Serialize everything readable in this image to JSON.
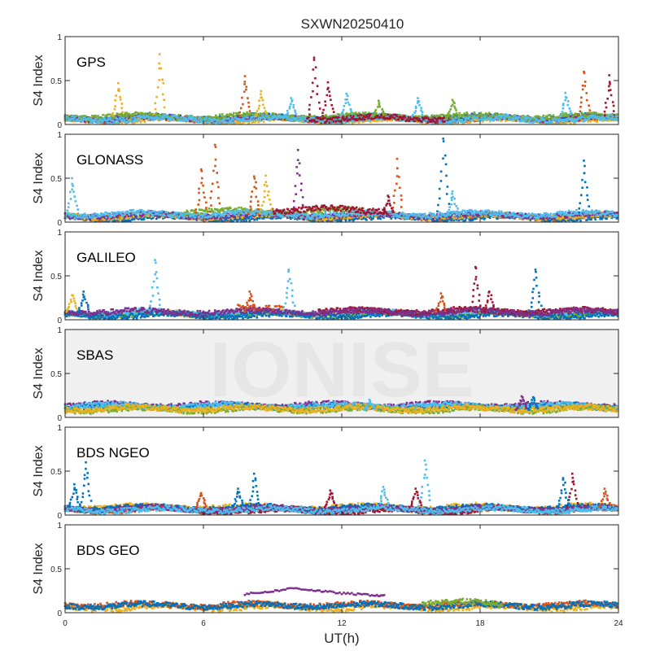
{
  "figure": {
    "title": "SXWN20250410",
    "watermark": "IONISE",
    "xlabel": "UT(h)",
    "ylabel": "S4 Index"
  },
  "colors": {
    "blue": "#0072bd",
    "orange": "#d95319",
    "yellow": "#edb120",
    "purple": "#7e2f8e",
    "green": "#77ac30",
    "cyan": "#4dbeee",
    "darkred": "#a2142f",
    "watermark": "#e6e6e6",
    "panel_bg": "#ffffff",
    "panel_bg_alt": "#f0f0f0"
  },
  "chart_data": [
    {
      "type": "scatter",
      "label": "GPS",
      "xlim": [
        0,
        24
      ],
      "ylim": [
        0,
        1
      ],
      "xticks": [
        "0",
        "6",
        "12",
        "18",
        "24"
      ],
      "yticks": [
        "0",
        "0.5",
        "1"
      ],
      "baseline": [
        {
          "color": "orange",
          "x0": 0.0,
          "x1": 24.0,
          "level": 0.06
        },
        {
          "color": "blue",
          "x0": 0.0,
          "x1": 24.0,
          "level": 0.08
        },
        {
          "color": "yellow",
          "x0": 0.0,
          "x1": 24.0,
          "level": 0.05
        },
        {
          "color": "purple",
          "x0": 0.0,
          "x1": 24.0,
          "level": 0.07
        },
        {
          "color": "green",
          "x0": 0.0,
          "x1": 24.0,
          "level": 0.09
        },
        {
          "color": "cyan",
          "x0": 0.0,
          "x1": 24.0,
          "level": 0.06
        },
        {
          "color": "darkred",
          "x0": 10.5,
          "x1": 16.5,
          "level": 0.07
        }
      ],
      "spikes": [
        {
          "color": "yellow",
          "x": 2.3,
          "peak": 0.47
        },
        {
          "color": "yellow",
          "x": 4.1,
          "peak": 0.8
        },
        {
          "color": "orange",
          "x": 7.8,
          "peak": 0.55
        },
        {
          "color": "yellow",
          "x": 8.5,
          "peak": 0.38
        },
        {
          "color": "cyan",
          "x": 9.8,
          "peak": 0.3
        },
        {
          "color": "darkred",
          "x": 10.8,
          "peak": 0.76
        },
        {
          "color": "darkred",
          "x": 11.4,
          "peak": 0.48
        },
        {
          "color": "cyan",
          "x": 12.2,
          "peak": 0.35
        },
        {
          "color": "green",
          "x": 13.6,
          "peak": 0.27
        },
        {
          "color": "cyan",
          "x": 15.3,
          "peak": 0.3
        },
        {
          "color": "green",
          "x": 16.8,
          "peak": 0.28
        },
        {
          "color": "cyan",
          "x": 21.7,
          "peak": 0.36
        },
        {
          "color": "orange",
          "x": 22.5,
          "peak": 0.6
        },
        {
          "color": "darkred",
          "x": 23.6,
          "peak": 0.56
        }
      ]
    },
    {
      "type": "scatter",
      "label": "GLONASS",
      "xlim": [
        0,
        24
      ],
      "ylim": [
        0,
        1
      ],
      "xticks": [
        "0",
        "6",
        "12",
        "18",
        "24"
      ],
      "yticks": [
        "0",
        "0.5",
        "1"
      ],
      "baseline": [
        {
          "color": "orange",
          "x0": 0.0,
          "x1": 24.0,
          "level": 0.06
        },
        {
          "color": "blue",
          "x0": 0.0,
          "x1": 24.0,
          "level": 0.05
        },
        {
          "color": "yellow",
          "x0": 0.0,
          "x1": 24.0,
          "level": 0.07
        },
        {
          "color": "purple",
          "x0": 0.0,
          "x1": 24.0,
          "level": 0.08
        },
        {
          "color": "green",
          "x0": 5.0,
          "x1": 13.0,
          "level": 0.12
        },
        {
          "color": "cyan",
          "x0": 0.0,
          "x1": 24.0,
          "level": 0.09
        },
        {
          "color": "darkred",
          "x0": 9.0,
          "x1": 14.0,
          "level": 0.14
        }
      ],
      "spikes": [
        {
          "color": "cyan",
          "x": 0.3,
          "peak": 0.5
        },
        {
          "color": "orange",
          "x": 5.9,
          "peak": 0.6
        },
        {
          "color": "orange",
          "x": 6.5,
          "peak": 0.88
        },
        {
          "color": "orange",
          "x": 8.2,
          "peak": 0.52
        },
        {
          "color": "yellow",
          "x": 8.7,
          "peak": 0.53
        },
        {
          "color": "purple",
          "x": 10.1,
          "peak": 0.82
        },
        {
          "color": "orange",
          "x": 14.4,
          "peak": 0.72
        },
        {
          "color": "darkred",
          "x": 14.0,
          "peak": 0.3
        },
        {
          "color": "blue",
          "x": 16.4,
          "peak": 0.95
        },
        {
          "color": "cyan",
          "x": 16.8,
          "peak": 0.35
        },
        {
          "color": "blue",
          "x": 22.5,
          "peak": 0.7
        }
      ]
    },
    {
      "type": "scatter",
      "label": "GALILEO",
      "xlim": [
        0,
        24
      ],
      "ylim": [
        0,
        1
      ],
      "xticks": [
        "0",
        "6",
        "12",
        "18",
        "24"
      ],
      "yticks": [
        "0",
        "0.5",
        "1"
      ],
      "baseline": [
        {
          "color": "yellow",
          "x0": 0.0,
          "x1": 24.0,
          "level": 0.07
        },
        {
          "color": "green",
          "x0": 0.0,
          "x1": 24.0,
          "level": 0.06
        },
        {
          "color": "cyan",
          "x0": 0.0,
          "x1": 24.0,
          "level": 0.08
        },
        {
          "color": "orange",
          "x0": 7.5,
          "x1": 9.5,
          "level": 0.15
        },
        {
          "color": "blue",
          "x0": 0.0,
          "x1": 24.0,
          "level": 0.05
        },
        {
          "color": "darkred",
          "x0": 11.0,
          "x1": 24.0,
          "level": 0.1
        },
        {
          "color": "purple",
          "x0": 0.0,
          "x1": 24.0,
          "level": 0.09
        }
      ],
      "spikes": [
        {
          "color": "yellow",
          "x": 0.3,
          "peak": 0.28
        },
        {
          "color": "blue",
          "x": 0.8,
          "peak": 0.32
        },
        {
          "color": "cyan",
          "x": 3.9,
          "peak": 0.68
        },
        {
          "color": "orange",
          "x": 8.0,
          "peak": 0.32
        },
        {
          "color": "cyan",
          "x": 9.7,
          "peak": 0.57
        },
        {
          "color": "orange",
          "x": 16.3,
          "peak": 0.3
        },
        {
          "color": "darkred",
          "x": 17.8,
          "peak": 0.6
        },
        {
          "color": "darkred",
          "x": 18.4,
          "peak": 0.32
        },
        {
          "color": "blue",
          "x": 20.4,
          "peak": 0.57
        }
      ]
    },
    {
      "type": "scatter",
      "label": "SBAS",
      "xlim": [
        0,
        24
      ],
      "ylim": [
        0,
        1
      ],
      "xticks": [
        "0",
        "6",
        "12",
        "18",
        "24"
      ],
      "yticks": [
        "0",
        "0.5",
        "1"
      ],
      "baseline": [
        {
          "color": "purple",
          "x0": 0.0,
          "x1": 24.0,
          "level": 0.14
        },
        {
          "color": "blue",
          "x0": 0.0,
          "x1": 24.0,
          "level": 0.12
        },
        {
          "color": "cyan",
          "x0": 0.0,
          "x1": 24.0,
          "level": 0.13
        },
        {
          "color": "green",
          "x0": 0.0,
          "x1": 24.0,
          "level": 0.09
        },
        {
          "color": "yellow",
          "x0": 0.0,
          "x1": 24.0,
          "level": 0.1
        }
      ],
      "spikes": [
        {
          "color": "purple",
          "x": 19.8,
          "peak": 0.24
        },
        {
          "color": "blue",
          "x": 20.3,
          "peak": 0.23
        },
        {
          "color": "cyan",
          "x": 13.2,
          "peak": 0.2
        }
      ]
    },
    {
      "type": "scatter",
      "label": "BDS NGEO",
      "xlim": [
        0,
        24
      ],
      "ylim": [
        0,
        1
      ],
      "xticks": [
        "0",
        "6",
        "12",
        "18",
        "24"
      ],
      "yticks": [
        "0",
        "0.5",
        "1"
      ],
      "baseline": [
        {
          "color": "green",
          "x0": 0.0,
          "x1": 24.0,
          "level": 0.07
        },
        {
          "color": "yellow",
          "x0": 0.0,
          "x1": 24.0,
          "level": 0.09
        },
        {
          "color": "orange",
          "x0": 0.0,
          "x1": 24.0,
          "level": 0.06
        },
        {
          "color": "blue",
          "x0": 0.0,
          "x1": 24.0,
          "level": 0.08
        },
        {
          "color": "darkred",
          "x0": 6.0,
          "x1": 18.0,
          "level": 0.05
        },
        {
          "color": "purple",
          "x0": 0.0,
          "x1": 24.0,
          "level": 0.07
        },
        {
          "color": "cyan",
          "x0": 0.0,
          "x1": 24.0,
          "level": 0.06
        }
      ],
      "spikes": [
        {
          "color": "blue",
          "x": 0.4,
          "peak": 0.35
        },
        {
          "color": "blue",
          "x": 0.9,
          "peak": 0.6
        },
        {
          "color": "orange",
          "x": 5.9,
          "peak": 0.25
        },
        {
          "color": "blue",
          "x": 7.5,
          "peak": 0.3
        },
        {
          "color": "blue",
          "x": 8.2,
          "peak": 0.47
        },
        {
          "color": "darkred",
          "x": 11.5,
          "peak": 0.28
        },
        {
          "color": "cyan",
          "x": 13.8,
          "peak": 0.32
        },
        {
          "color": "cyan",
          "x": 15.6,
          "peak": 0.62
        },
        {
          "color": "darkred",
          "x": 15.2,
          "peak": 0.3
        },
        {
          "color": "darkred",
          "x": 22.0,
          "peak": 0.47
        },
        {
          "color": "blue",
          "x": 21.6,
          "peak": 0.42
        },
        {
          "color": "orange",
          "x": 23.4,
          "peak": 0.3
        }
      ]
    },
    {
      "type": "scatter",
      "label": "BDS GEO",
      "xlim": [
        0,
        24
      ],
      "ylim": [
        0,
        1
      ],
      "xticks": [
        "0",
        "6",
        "12",
        "18",
        "24"
      ],
      "yticks": [
        "0",
        "0.5",
        "1"
      ],
      "xlabel": "UT(h)",
      "baseline": [
        {
          "color": "yellow",
          "x0": 0.0,
          "x1": 24.0,
          "level": 0.06
        },
        {
          "color": "orange",
          "x0": 0.0,
          "x1": 24.0,
          "level": 0.09
        },
        {
          "color": "blue",
          "x0": 0.0,
          "x1": 24.0,
          "level": 0.08
        },
        {
          "color": "green",
          "x0": 15.5,
          "x1": 19.0,
          "level": 0.11
        }
      ],
      "arcs": [
        {
          "color": "purple",
          "x": [
            7.8,
            8.5,
            9.2,
            9.9,
            10.6,
            11.3,
            12.0,
            12.7,
            13.4,
            13.9
          ],
          "y": [
            0.21,
            0.23,
            0.25,
            0.28,
            0.26,
            0.24,
            0.22,
            0.21,
            0.2,
            0.19
          ]
        }
      ],
      "spikes": []
    }
  ]
}
